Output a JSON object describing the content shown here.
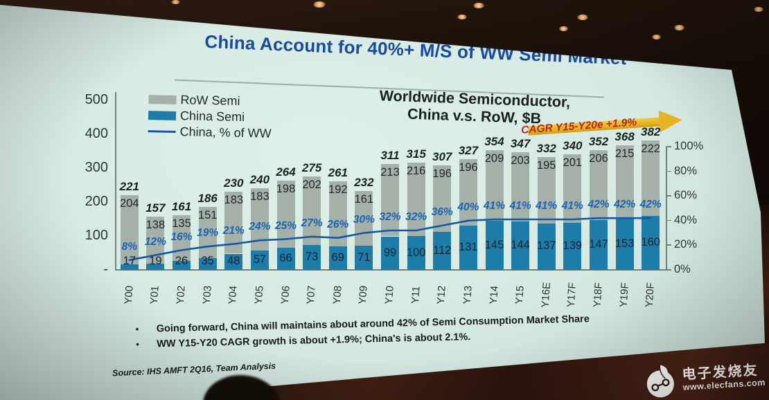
{
  "photo": {
    "watermark": {
      "brand": "电子发烧友",
      "url": "www.elecfans.com"
    }
  },
  "slide": {
    "title": "China Account for 40%+ M/S of WW Semi Market",
    "subtitle_lines": [
      "Worldwide Semiconductor,",
      "China v.s. RoW, $B"
    ],
    "cagr_annotation": "CAGR Y15-Y20e +1.9%",
    "bullets": [
      "Going forward, China will maintains about around 42% of Semi Consumption Market Share",
      "WW Y15-Y20 CAGR growth is about +1.9%; China's is about 2.1%."
    ],
    "source": "Source: IHS AMFT 2Q16, Team Analysis"
  },
  "chart_data": {
    "type": "bar",
    "subtype": "stacked-bars-with-percent-line",
    "title": "Worldwide Semiconductor, China v.s. RoW, $B",
    "categories": [
      "Y00",
      "Y01",
      "Y02",
      "Y03",
      "Y04",
      "Y05",
      "Y06",
      "Y07",
      "Y08",
      "Y09",
      "Y10",
      "Y11",
      "Y12",
      "Y13",
      "Y14",
      "Y15",
      "Y16E",
      "Y17F",
      "Y18F",
      "Y19F",
      "Y20F"
    ],
    "series": [
      {
        "name": "China Semi",
        "type": "bar",
        "stack": "semi",
        "color": "#1e7ca8",
        "values": [
          17,
          19,
          26,
          35,
          48,
          57,
          66,
          73,
          69,
          71,
          99,
          100,
          112,
          131,
          145,
          144,
          137,
          139,
          147,
          153,
          160
        ]
      },
      {
        "name": "RoW Semi",
        "type": "bar",
        "stack": "semi",
        "color": "#a4b0a8",
        "values": [
          204,
          138,
          135,
          151,
          183,
          183,
          198,
          202,
          192,
          161,
          213,
          216,
          196,
          196,
          209,
          203,
          195,
          201,
          206,
          215,
          222
        ]
      },
      {
        "name": "China, % of WW",
        "type": "line",
        "axis": "right",
        "color": "#1457a8",
        "values": [
          8,
          12,
          16,
          19,
          21,
          24,
          25,
          27,
          26,
          30,
          32,
          32,
          36,
          40,
          41,
          41,
          41,
          41,
          42,
          42,
          42
        ]
      }
    ],
    "totals": [
      221,
      157,
      161,
      186,
      230,
      240,
      264,
      275,
      261,
      232,
      311,
      315,
      307,
      327,
      354,
      347,
      332,
      340,
      352,
      368,
      382
    ],
    "left_axis": {
      "labels": [
        "500",
        "400",
        "300",
        "200",
        "100",
        "-"
      ],
      "values": [
        500,
        400,
        300,
        200,
        100,
        0
      ],
      "range": [
        0,
        500
      ]
    },
    "right_axis": {
      "labels": [
        "100%",
        "80%",
        "60%",
        "40%",
        "20%",
        "0%"
      ],
      "values": [
        100,
        80,
        60,
        40,
        20,
        0
      ],
      "range": [
        0,
        100
      ]
    },
    "legend_position": "top-left",
    "grid": false
  },
  "colors": {
    "slide_bg": "#d6e9e3",
    "title_blue": "#1a4aa0",
    "text_dark": "#161a18",
    "pct_label_blue": "#1a64b4",
    "cagr_red": "#b5271d",
    "arrow_gold": "#e6b323",
    "axis_gray": "#73817b",
    "watermark_white": "#ffffff"
  }
}
